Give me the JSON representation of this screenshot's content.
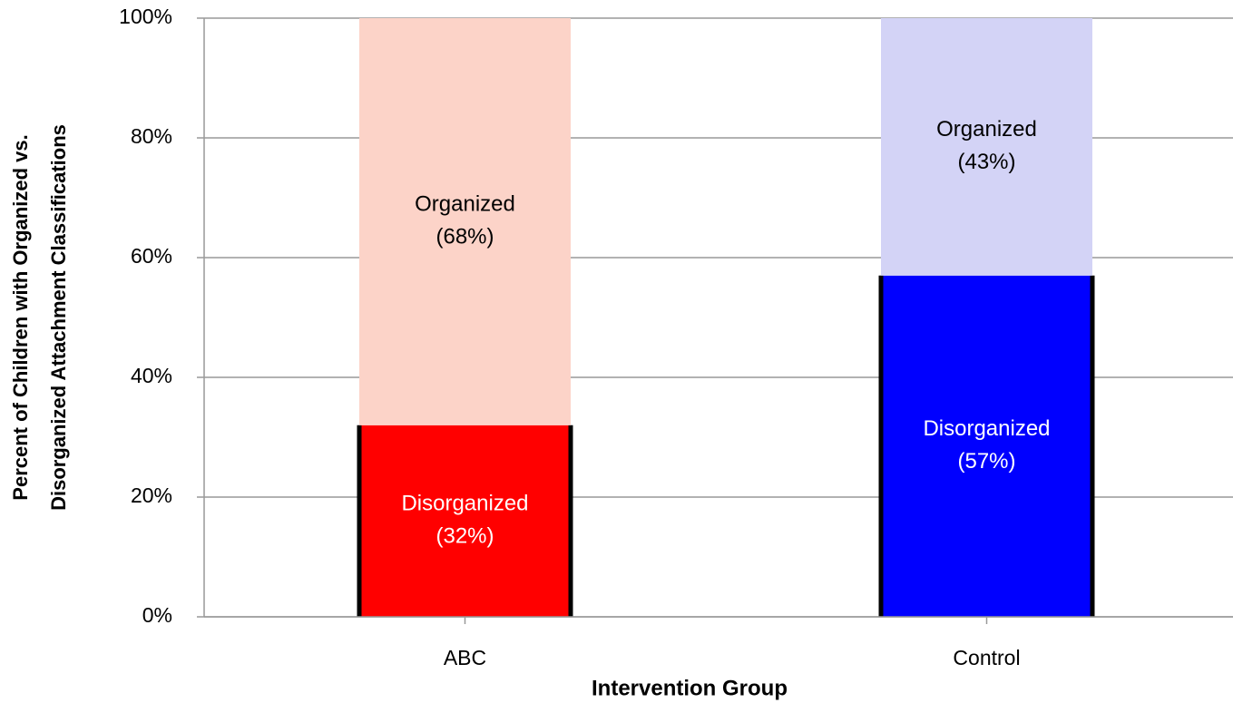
{
  "chart_data": {
    "type": "stacked_bar",
    "ylabel": [
      "Percent of Children with Organized vs.",
      "Disorganized Attachment Classifications"
    ],
    "xlabel": "Intervention Group",
    "categories": [
      "ABC",
      "Control"
    ],
    "series": [
      {
        "name": "Disorganized",
        "colors": [
          "#ff0000",
          "#0000ff"
        ],
        "label_color": "#ffffff",
        "values": [
          32,
          57
        ],
        "value_labels": [
          "(32%)",
          "(57%)"
        ]
      },
      {
        "name": "Organized",
        "colors": [
          "#fcd3c8",
          "#d3d3f6"
        ],
        "label_color": "#000000",
        "values": [
          68,
          43
        ],
        "value_labels": [
          "(68%)",
          "(43%)"
        ]
      }
    ],
    "ylim": [
      0,
      100
    ],
    "yticks": [
      {
        "value": 0,
        "label": "0%"
      },
      {
        "value": 20,
        "label": "20%"
      },
      {
        "value": 40,
        "label": "40%"
      },
      {
        "value": 60,
        "label": "60%"
      },
      {
        "value": 80,
        "label": "80%"
      },
      {
        "value": 100,
        "label": "100%"
      }
    ],
    "grid": true
  }
}
